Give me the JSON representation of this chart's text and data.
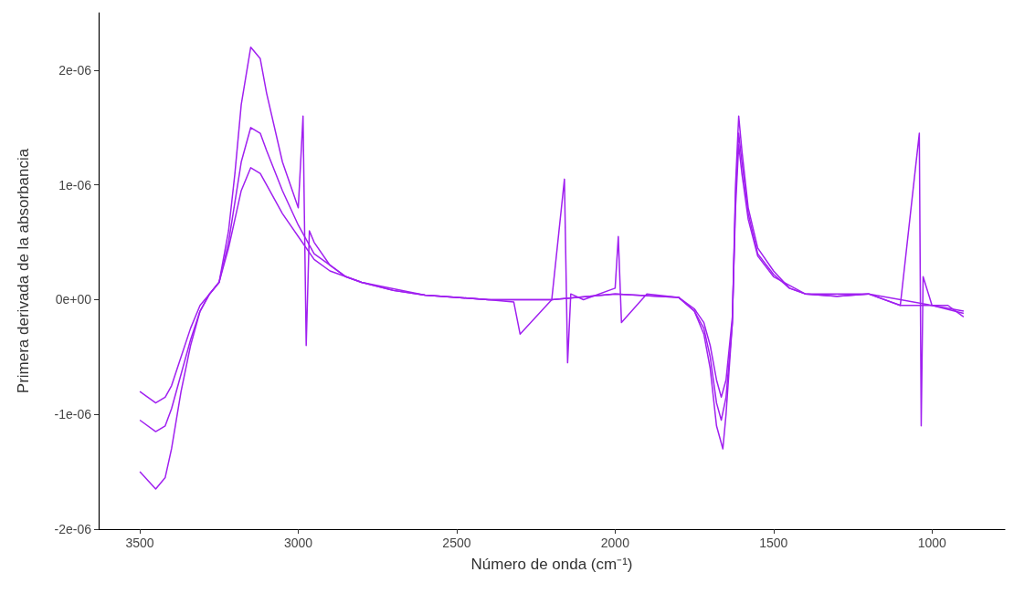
{
  "chart_data": {
    "type": "line",
    "xlabel": "Número de onda (cm⁻¹)",
    "ylabel": "Primera derivada de la absorbancia",
    "xlim": [
      3630,
      770
    ],
    "xticks": [
      3500,
      3000,
      2500,
      2000,
      1500,
      1000
    ],
    "ylim": [
      -2e-06,
      2.5e-06
    ],
    "yticks": [
      {
        "value": -2e-06,
        "label": "-2e-06"
      },
      {
        "value": -1e-06,
        "label": "-1e-06"
      },
      {
        "value": 0,
        "label": "0e+00"
      },
      {
        "value": 1e-06,
        "label": "1e-06"
      },
      {
        "value": 2e-06,
        "label": "2e-06"
      }
    ],
    "grid": false,
    "marker": "none",
    "line_style": "solid",
    "series": [
      {
        "color": "#a020f0",
        "x": [
          3500,
          3450,
          3420,
          3400,
          3370,
          3340,
          3310,
          3280,
          3250,
          3220,
          3200,
          3180,
          3150,
          3120,
          3100,
          3050,
          3000,
          2985,
          2975,
          2965,
          2950,
          2900,
          2850,
          2800,
          2700,
          2600,
          2500,
          2400,
          2320,
          2300,
          2200,
          2160,
          2150,
          2140,
          2100,
          2000,
          1990,
          1980,
          1900,
          1800,
          1750,
          1720,
          1700,
          1680,
          1660,
          1650,
          1630,
          1620,
          1610,
          1600,
          1580,
          1550,
          1500,
          1450,
          1400,
          1300,
          1200,
          1100,
          1040,
          1034,
          1028,
          1000,
          950,
          900
        ],
        "values": [
          -1.5e-06,
          -1.65e-06,
          -1.55e-06,
          -1.3e-06,
          -8e-07,
          -4e-07,
          -1e-07,
          5e-08,
          1.5e-07,
          6e-07,
          1.1e-06,
          1.7e-06,
          2.2e-06,
          2.1e-06,
          1.8e-06,
          1.2e-06,
          8e-07,
          1.6e-06,
          -4e-07,
          6e-07,
          5e-07,
          3e-07,
          2e-07,
          1.5e-07,
          8e-08,
          4e-08,
          2e-08,
          0,
          -2e-08,
          -3e-07,
          0,
          1.05e-06,
          -5.5e-07,
          5e-08,
          0,
          1e-07,
          5.5e-07,
          -2e-07,
          5e-08,
          2e-08,
          -1e-07,
          -3e-07,
          -6e-07,
          -1.1e-06,
          -1.3e-06,
          -1e-06,
          -2e-07,
          1e-06,
          1.6e-06,
          1.3e-06,
          8e-07,
          4.5e-07,
          2.5e-07,
          1e-07,
          5e-08,
          3e-08,
          5e-08,
          -5e-08,
          1.45e-06,
          -1.1e-06,
          2e-07,
          -5e-08,
          -5e-08,
          -1.5e-07
        ]
      },
      {
        "color": "#a020f0",
        "x": [
          3500,
          3450,
          3420,
          3400,
          3370,
          3340,
          3310,
          3280,
          3250,
          3220,
          3200,
          3180,
          3150,
          3120,
          3100,
          3050,
          3000,
          2950,
          2900,
          2850,
          2800,
          2700,
          2600,
          2500,
          2400,
          2200,
          2000,
          1800,
          1750,
          1720,
          1700,
          1680,
          1665,
          1650,
          1630,
          1620,
          1610,
          1600,
          1580,
          1550,
          1500,
          1450,
          1400,
          1300,
          1200,
          1100,
          1000,
          900
        ],
        "values": [
          -1.05e-06,
          -1.15e-06,
          -1.1e-06,
          -9.5e-07,
          -6.5e-07,
          -3.5e-07,
          -1e-07,
          5e-08,
          1.5e-07,
          5e-07,
          8.5e-07,
          1.2e-06,
          1.5e-06,
          1.45e-06,
          1.3e-06,
          9.5e-07,
          6.5e-07,
          4e-07,
          3e-07,
          2e-07,
          1.5e-07,
          8e-08,
          4e-08,
          2e-08,
          0,
          0,
          5e-08,
          2e-08,
          -1e-07,
          -2.5e-07,
          -5e-07,
          -9e-07,
          -1.05e-06,
          -8.5e-07,
          -2e-07,
          9e-07,
          1.45e-06,
          1.2e-06,
          7.5e-07,
          4e-07,
          2.2e-07,
          1e-07,
          5e-08,
          3e-08,
          5e-08,
          -5e-08,
          -5e-08,
          -1.2e-07
        ]
      },
      {
        "color": "#a020f0",
        "x": [
          3500,
          3450,
          3420,
          3400,
          3370,
          3340,
          3310,
          3280,
          3250,
          3220,
          3200,
          3180,
          3150,
          3120,
          3100,
          3050,
          3000,
          2950,
          2900,
          2800,
          2600,
          2400,
          2200,
          2000,
          1800,
          1750,
          1720,
          1700,
          1680,
          1665,
          1650,
          1630,
          1620,
          1610,
          1600,
          1580,
          1550,
          1500,
          1400,
          1200,
          1000,
          900
        ],
        "values": [
          -8e-07,
          -9e-07,
          -8.5e-07,
          -7.5e-07,
          -5e-07,
          -2.5e-07,
          -5e-08,
          5e-08,
          1.5e-07,
          4.5e-07,
          7e-07,
          9.5e-07,
          1.15e-06,
          1.1e-06,
          1e-06,
          7.5e-07,
          5.5e-07,
          3.5e-07,
          2.5e-07,
          1.5e-07,
          4e-08,
          0,
          0,
          5e-08,
          2e-08,
          -8e-08,
          -2e-07,
          -4e-07,
          -7e-07,
          -8.5e-07,
          -7e-07,
          -1.5e-07,
          8e-07,
          1.35e-06,
          1.1e-06,
          7e-07,
          3.8e-07,
          2e-07,
          5e-08,
          5e-08,
          -5e-08,
          -1e-07
        ]
      }
    ]
  }
}
